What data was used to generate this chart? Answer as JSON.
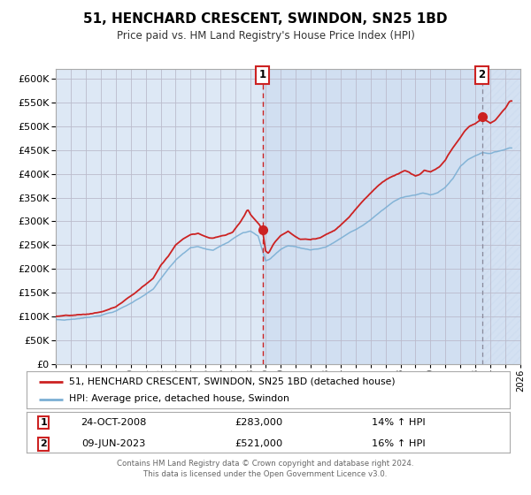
{
  "title": "51, HENCHARD CRESCENT, SWINDON, SN25 1BD",
  "subtitle": "Price paid vs. HM Land Registry's House Price Index (HPI)",
  "hpi_color": "#7bafd4",
  "property_color": "#cc2222",
  "background_color": "#ffffff",
  "plot_bg_color": "#dde8f5",
  "grid_color": "#bbbbcc",
  "ylim": [
    0,
    620000
  ],
  "ytick_step": 50000,
  "xstart_year": 1995,
  "xend_year": 2026,
  "legend_property": "51, HENCHARD CRESCENT, SWINDON, SN25 1BD (detached house)",
  "legend_hpi": "HPI: Average price, detached house, Swindon",
  "sale1_date": "24-OCT-2008",
  "sale1_price": "£283,000",
  "sale1_hpi": "14% ↑ HPI",
  "sale1_year": 2008.8,
  "sale1_value": 283000,
  "sale2_date": "09-JUN-2023",
  "sale2_price": "£521,000",
  "sale2_hpi": "16% ↑ HPI",
  "sale2_year": 2023.44,
  "sale2_value": 521000,
  "footer_line1": "Contains HM Land Registry data © Crown copyright and database right 2024.",
  "footer_line2": "This data is licensed under the Open Government Licence v3.0.",
  "sale1_box_color": "#cc2222",
  "sale2_box_color": "#cc2222",
  "hatch_color": "#b0c4de"
}
